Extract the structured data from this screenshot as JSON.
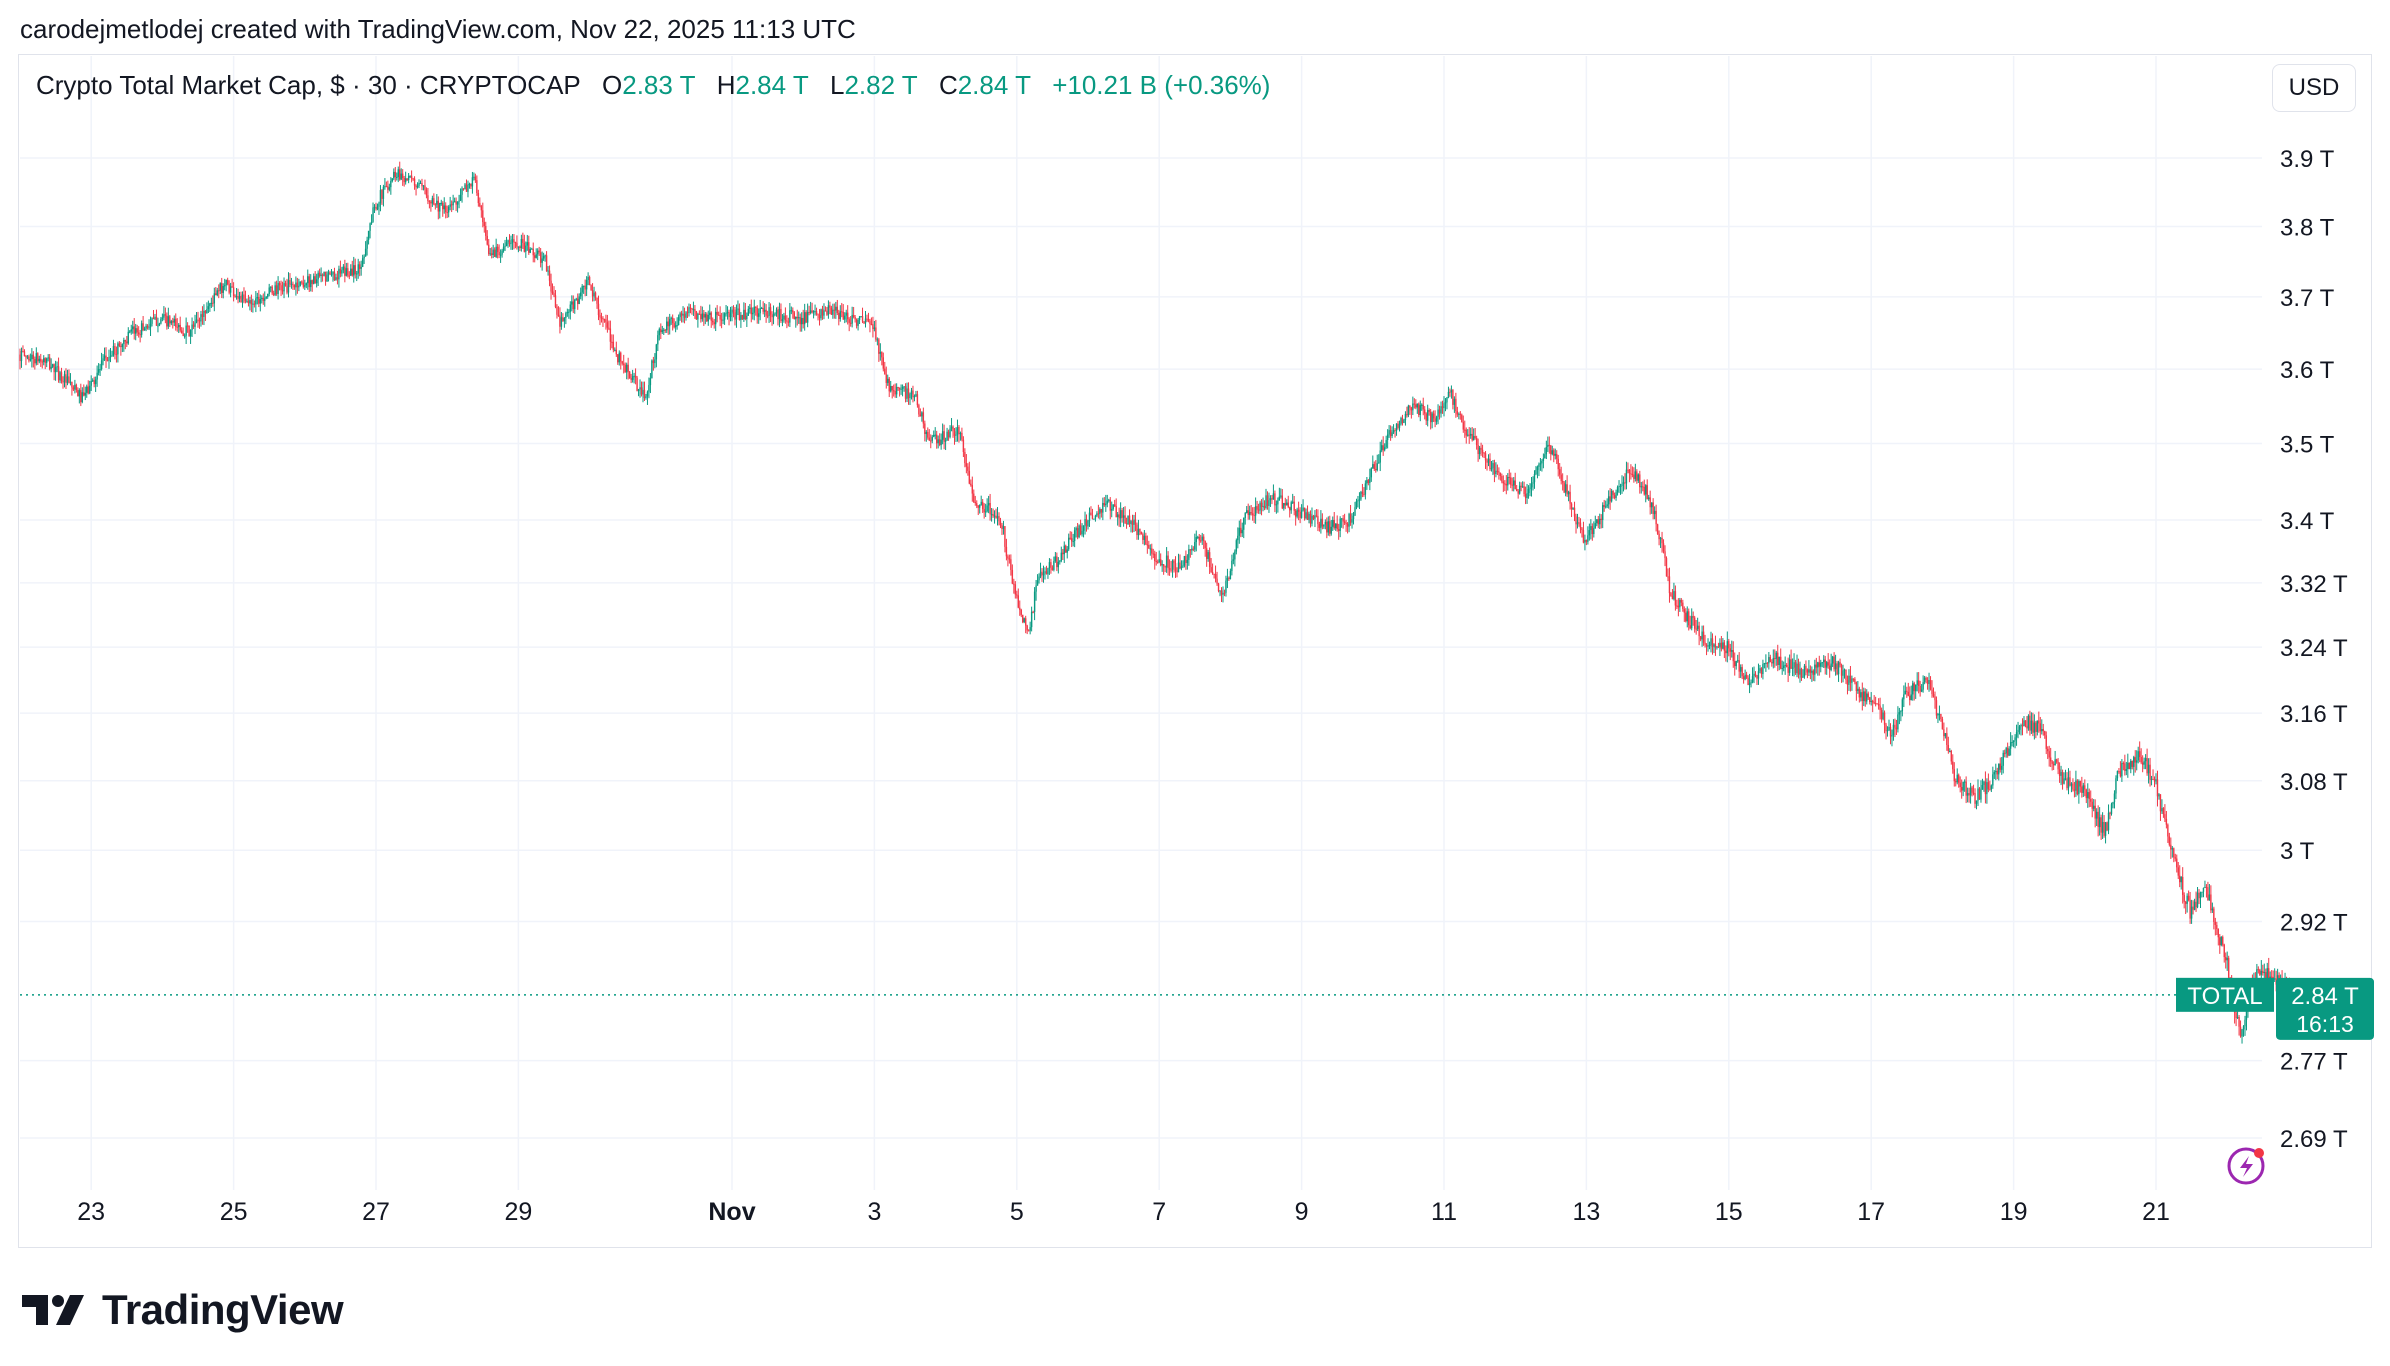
{
  "caption": "carodejmetlodej created with TradingView.com, Nov 22, 2025 11:13 UTC",
  "legend": {
    "title": "Crypto Total Market Cap, $ · 30 · CRYPTOCAP",
    "open_label": "O",
    "open": "2.83 T",
    "high_label": "H",
    "high": "2.84 T",
    "low_label": "L",
    "low": "2.82 T",
    "close_label": "C",
    "close": "2.84 T",
    "change": "+10.21 B (+0.36%)"
  },
  "currency_button": "USD",
  "brand": {
    "name": "TradingView",
    "logo_icon": "tradingview-logo-icon"
  },
  "last_price": {
    "symbol": "TOTAL",
    "value": "2.84 T",
    "countdown": "16:13"
  },
  "colors": {
    "up": "#089981",
    "down": "#f23645",
    "grid": "#f0f3fa",
    "text": "#131722",
    "accent": "#9c27b0"
  },
  "chart_data": {
    "type": "candlestick",
    "interval": "30",
    "ylabel": "",
    "y_scale": "log",
    "ylim": [
      2.64,
      3.97
    ],
    "y_ticks": [
      {
        "value": 3.9,
        "label": "3.9 T"
      },
      {
        "value": 3.8,
        "label": "3.8 T"
      },
      {
        "value": 3.7,
        "label": "3.7 T"
      },
      {
        "value": 3.6,
        "label": "3.6 T"
      },
      {
        "value": 3.5,
        "label": "3.5 T"
      },
      {
        "value": 3.4,
        "label": "3.4 T"
      },
      {
        "value": 3.32,
        "label": "3.32 T"
      },
      {
        "value": 3.24,
        "label": "3.24 T"
      },
      {
        "value": 3.16,
        "label": "3.16 T"
      },
      {
        "value": 3.08,
        "label": "3.08 T"
      },
      {
        "value": 3.0,
        "label": "3 T"
      },
      {
        "value": 2.92,
        "label": "2.92 T"
      },
      {
        "value": 2.77,
        "label": "2.77 T"
      },
      {
        "value": 2.69,
        "label": "2.69 T"
      }
    ],
    "x_ticks": [
      {
        "day": 23,
        "label": "23"
      },
      {
        "day": 25,
        "label": "25"
      },
      {
        "day": 27,
        "label": "27"
      },
      {
        "day": 29,
        "label": "29"
      },
      {
        "day": 32,
        "label": "Nov",
        "bold": true
      },
      {
        "day": 34,
        "label": "3"
      },
      {
        "day": 36,
        "label": "5"
      },
      {
        "day": 38,
        "label": "7"
      },
      {
        "day": 40,
        "label": "9"
      },
      {
        "day": 42,
        "label": "11"
      },
      {
        "day": 44,
        "label": "13"
      },
      {
        "day": 46,
        "label": "15"
      },
      {
        "day": 48,
        "label": "17"
      },
      {
        "day": 50,
        "label": "19"
      },
      {
        "day": 52,
        "label": "21"
      }
    ],
    "x_units": "days since Oct 0, 2025",
    "path": [
      [
        22.0,
        3.62
      ],
      [
        22.4,
        3.61
      ],
      [
        22.9,
        3.56
      ],
      [
        23.2,
        3.61
      ],
      [
        23.6,
        3.65
      ],
      [
        24.0,
        3.67
      ],
      [
        24.4,
        3.65
      ],
      [
        24.9,
        3.72
      ],
      [
        25.2,
        3.69
      ],
      [
        25.6,
        3.71
      ],
      [
        26.0,
        3.72
      ],
      [
        26.4,
        3.73
      ],
      [
        26.8,
        3.74
      ],
      [
        27.0,
        3.83
      ],
      [
        27.3,
        3.88
      ],
      [
        27.6,
        3.86
      ],
      [
        28.0,
        3.82
      ],
      [
        28.4,
        3.87
      ],
      [
        28.6,
        3.76
      ],
      [
        29.0,
        3.78
      ],
      [
        29.4,
        3.75
      ],
      [
        29.6,
        3.66
      ],
      [
        30.0,
        3.72
      ],
      [
        30.4,
        3.62
      ],
      [
        30.8,
        3.56
      ],
      [
        31.0,
        3.65
      ],
      [
        31.4,
        3.68
      ],
      [
        31.8,
        3.67
      ],
      [
        32.4,
        3.68
      ],
      [
        33.0,
        3.67
      ],
      [
        33.4,
        3.68
      ],
      [
        34.0,
        3.66
      ],
      [
        34.2,
        3.58
      ],
      [
        34.6,
        3.56
      ],
      [
        34.8,
        3.5
      ],
      [
        35.2,
        3.52
      ],
      [
        35.4,
        3.43
      ],
      [
        35.8,
        3.4
      ],
      [
        36.0,
        3.3
      ],
      [
        36.2,
        3.26
      ],
      [
        36.3,
        3.32
      ],
      [
        36.6,
        3.35
      ],
      [
        37.0,
        3.4
      ],
      [
        37.3,
        3.42
      ],
      [
        37.6,
        3.4
      ],
      [
        38.0,
        3.35
      ],
      [
        38.3,
        3.34
      ],
      [
        38.6,
        3.38
      ],
      [
        38.9,
        3.3
      ],
      [
        39.2,
        3.4
      ],
      [
        39.6,
        3.43
      ],
      [
        40.0,
        3.41
      ],
      [
        40.4,
        3.39
      ],
      [
        40.7,
        3.4
      ],
      [
        41.0,
        3.46
      ],
      [
        41.3,
        3.52
      ],
      [
        41.6,
        3.55
      ],
      [
        41.9,
        3.53
      ],
      [
        42.1,
        3.57
      ],
      [
        42.3,
        3.52
      ],
      [
        42.6,
        3.48
      ],
      [
        42.9,
        3.45
      ],
      [
        43.2,
        3.43
      ],
      [
        43.5,
        3.5
      ],
      [
        43.8,
        3.42
      ],
      [
        44.0,
        3.37
      ],
      [
        44.3,
        3.42
      ],
      [
        44.6,
        3.46
      ],
      [
        44.8,
        3.45
      ],
      [
        45.0,
        3.4
      ],
      [
        45.2,
        3.31
      ],
      [
        45.4,
        3.28
      ],
      [
        45.7,
        3.25
      ],
      [
        46.0,
        3.24
      ],
      [
        46.3,
        3.19
      ],
      [
        46.6,
        3.23
      ],
      [
        47.0,
        3.21
      ],
      [
        47.5,
        3.22
      ],
      [
        47.8,
        3.19
      ],
      [
        48.1,
        3.17
      ],
      [
        48.3,
        3.13
      ],
      [
        48.5,
        3.18
      ],
      [
        48.8,
        3.2
      ],
      [
        49.0,
        3.15
      ],
      [
        49.2,
        3.08
      ],
      [
        49.5,
        3.06
      ],
      [
        49.8,
        3.09
      ],
      [
        50.0,
        3.13
      ],
      [
        50.2,
        3.15
      ],
      [
        50.4,
        3.14
      ],
      [
        50.7,
        3.08
      ],
      [
        51.0,
        3.07
      ],
      [
        51.3,
        3.02
      ],
      [
        51.5,
        3.09
      ],
      [
        51.8,
        3.11
      ],
      [
        52.0,
        3.08
      ],
      [
        52.3,
        2.98
      ],
      [
        52.5,
        2.93
      ],
      [
        52.7,
        2.96
      ],
      [
        53.0,
        2.88
      ],
      [
        53.2,
        2.8
      ],
      [
        53.4,
        2.86
      ],
      [
        53.7,
        2.86
      ],
      [
        53.9,
        2.84
      ]
    ],
    "last_price": 2.84
  }
}
